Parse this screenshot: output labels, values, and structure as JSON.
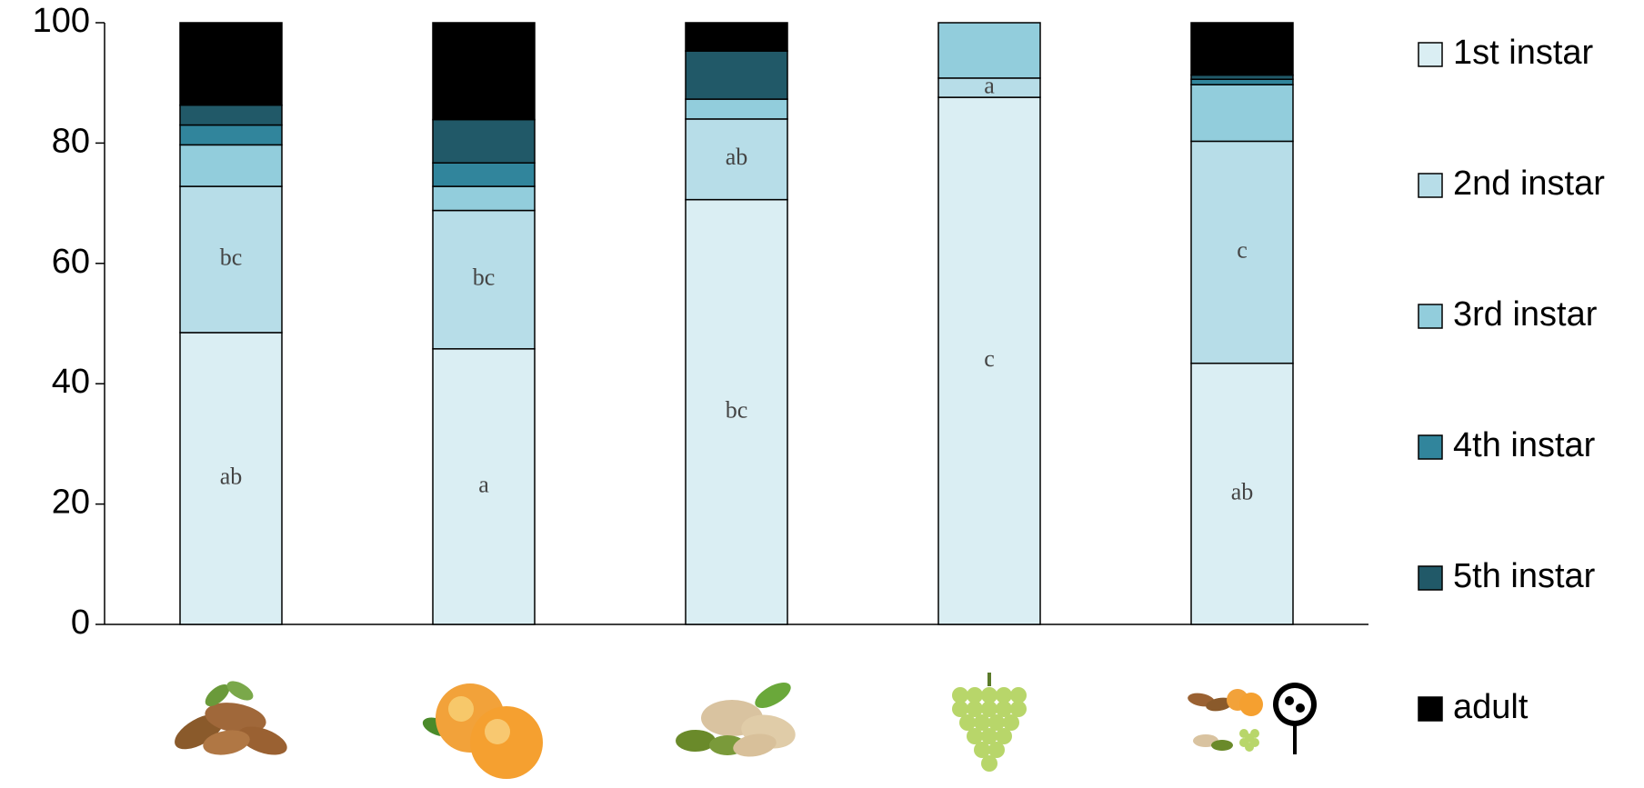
{
  "chart_data": {
    "type": "stacked_bar",
    "categories": [
      null,
      null,
      null,
      null,
      null
    ],
    "series": [
      {
        "name": "1st instar",
        "color": "#daeef3",
        "values": [
          48.5,
          45.8,
          70.6,
          87.6,
          43.4
        ],
        "annotations": [
          "ab",
          "a",
          "bc",
          "c",
          "ab"
        ]
      },
      {
        "name": "2nd instar",
        "color": "#b7dde8",
        "values": [
          24.3,
          23.0,
          13.4,
          3.2,
          36.9
        ],
        "annotations": [
          "bc",
          "bc",
          "ab",
          "a",
          "c"
        ]
      },
      {
        "name": "3rd instar",
        "color": "#92cddc",
        "values": [
          6.9,
          4.0,
          3.3,
          9.2,
          9.4
        ]
      },
      {
        "name": "4th instar",
        "color": "#31859c",
        "values": [
          3.3,
          3.9,
          0,
          0,
          0.9
        ]
      },
      {
        "name": "5th instar",
        "color": "#215968",
        "values": [
          3.3,
          7.2,
          8.0,
          0,
          0.7
        ]
      },
      {
        "name": "adult",
        "color": "#000000",
        "values": [
          13.7,
          16.1,
          4.7,
          0,
          8.7
        ]
      }
    ],
    "ylim": [
      0,
      100
    ],
    "yticks": [
      0,
      20,
      40,
      60,
      80,
      100
    ],
    "grid": false,
    "legend": "right"
  }
}
